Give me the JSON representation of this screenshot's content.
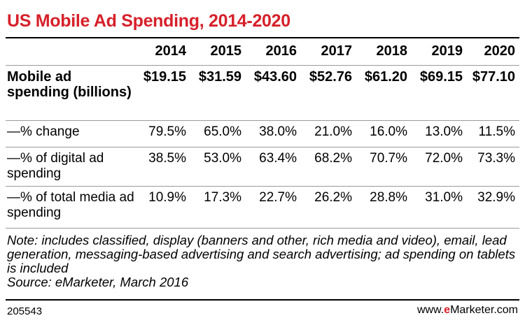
{
  "chart_data": {
    "type": "table",
    "title": "US Mobile Ad Spending, 2014-2020",
    "columns": [
      "2014",
      "2015",
      "2016",
      "2017",
      "2018",
      "2019",
      "2020"
    ],
    "rows": [
      {
        "label": "Mobile ad spending (billions)",
        "bold": true,
        "values": [
          "$19.15",
          "$31.59",
          "$43.60",
          "$52.76",
          "$61.20",
          "$69.15",
          "$77.10"
        ]
      },
      {
        "label": "—% change",
        "bold": false,
        "values": [
          "79.5%",
          "65.0%",
          "38.0%",
          "21.0%",
          "16.0%",
          "13.0%",
          "11.5%"
        ]
      },
      {
        "label": "—% of digital ad spending",
        "bold": false,
        "values": [
          "38.5%",
          "53.0%",
          "63.4%",
          "68.2%",
          "70.7%",
          "72.0%",
          "73.3%"
        ]
      },
      {
        "label": "—% of total media ad spending",
        "bold": false,
        "values": [
          "10.9%",
          "17.3%",
          "22.7%",
          "26.2%",
          "28.8%",
          "31.0%",
          "32.9%"
        ]
      }
    ],
    "note": "Note: includes classified, display (banners and other, rich media and video), email, lead generation, messaging-based advertising and search advertising; ad spending on tablets is included",
    "source": "Source: eMarketer, March 2016"
  },
  "footer": {
    "chart_id": "205543",
    "brand_prefix": "www.",
    "brand_e": "e",
    "brand_suffix": "Marketer.com"
  },
  "colors": {
    "title": "#d6202a",
    "brand_accent": "#d6202a"
  }
}
